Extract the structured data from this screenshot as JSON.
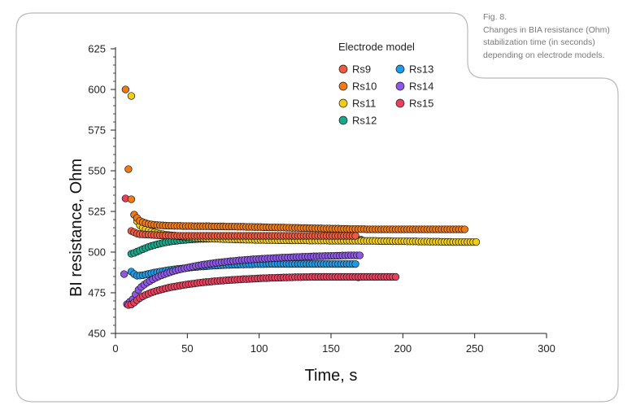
{
  "caption": {
    "label": "Fig. 8.",
    "text_line1": "Changes in BIA resistance (Ohm)",
    "text_line2": "stabilization time (in seconds)",
    "text_line3": "depending on electrode models."
  },
  "chart_data": {
    "type": "scatter",
    "xlabel": "Time, s",
    "ylabel": "BI resistance, Ohm",
    "xlim": [
      0,
      300
    ],
    "ylim": [
      450,
      625
    ],
    "xticks": [
      0,
      50,
      100,
      150,
      200,
      250,
      300
    ],
    "yticks": [
      450,
      475,
      500,
      525,
      550,
      575,
      600,
      625
    ],
    "legend_title": "Electrode model",
    "legend_position": "top-center",
    "colors": {
      "Rs9": "#F05A3E",
      "Rs10": "#F07A14",
      "Rs11": "#F2CD17",
      "Rs12": "#14A98B",
      "Rs13": "#1E9BE8",
      "Rs14": "#8E57E8",
      "Rs15": "#EC3F5E"
    },
    "series": [
      {
        "name": "Rs9",
        "x_start": 11,
        "x_step": 2,
        "values": [
          513.0,
          512.2,
          511.4,
          511.0,
          510.9,
          510.8,
          510.7,
          510.6,
          510.5,
          510.4,
          510.3,
          510.3,
          510.2,
          510.2,
          510.1,
          510.1,
          510.0,
          510.0,
          510.0,
          510.0,
          510.0,
          510.0,
          510.0,
          510.0,
          510.0,
          510.0,
          510.0,
          510.0,
          510.0,
          510.0,
          510.0,
          510.0,
          510.0,
          510.0,
          510.0,
          510.0,
          510.0,
          510.0,
          510.0,
          510.0,
          510.0,
          510.0,
          510.0,
          510.0,
          510.0,
          510.0,
          510.0,
          510.0,
          510.0,
          510.0,
          510.0,
          510.0,
          510.0,
          510.0,
          510.0,
          510.0,
          510.0,
          510.0,
          510.0,
          510.0,
          510.0,
          510.0,
          510.0,
          510.0,
          510.0,
          510.0,
          510.0,
          510.0,
          510.0,
          510.0,
          510.0,
          510.0,
          510.0,
          510.0,
          510.0,
          510.0,
          510.0,
          510.0,
          510.0
        ]
      },
      {
        "name": "Rs10",
        "x_start": 7,
        "x_step": 2,
        "values": [
          600.0,
          551.0,
          532.5,
          523.0,
          521.0,
          519.2,
          518.4,
          517.8,
          517.3,
          517.0,
          516.8,
          516.6,
          516.5,
          516.4,
          516.3,
          516.2,
          516.2,
          516.1,
          516.1,
          516.1,
          516.0,
          516.0,
          516.0,
          516.0,
          515.9,
          515.9,
          515.9,
          515.9,
          515.9,
          515.9,
          515.8,
          515.8,
          515.8,
          515.8,
          515.8,
          515.7,
          515.7,
          515.7,
          515.7,
          515.6,
          515.6,
          515.6,
          515.5,
          515.5,
          515.5,
          515.4,
          515.4,
          515.4,
          515.3,
          515.3,
          515.2,
          515.2,
          515.2,
          515.1,
          515.1,
          515.1,
          515.0,
          515.0,
          514.9,
          514.9,
          514.9,
          514.8,
          514.8,
          514.8,
          514.7,
          514.7,
          514.6,
          514.6,
          514.6,
          514.5,
          514.5,
          514.5,
          514.4,
          514.4,
          514.4,
          514.3,
          514.3,
          514.3,
          514.2,
          514.2,
          514.2,
          514.1,
          514.1,
          514.1,
          514.0,
          514.0,
          514.0,
          514.0,
          514.0,
          514.0,
          514.0,
          514.0,
          514.0,
          514.0,
          514.0,
          514.0,
          514.0,
          514.0,
          514.0,
          514.0,
          514.0,
          514.0,
          514.0,
          514.0,
          514.0,
          514.0,
          514.0,
          514.0,
          514.0,
          514.0,
          514.0,
          514.0,
          514.0,
          514.0,
          514.0,
          514.0,
          514.0,
          514.0,
          514.0
        ]
      },
      {
        "name": "Rs11",
        "x_start": 11,
        "x_step": 2,
        "values": [
          596.0,
          523.0,
          519.0,
          516.5,
          515.0,
          514.0,
          513.2,
          512.6,
          512.1,
          511.7,
          511.3,
          511.0,
          510.7,
          510.5,
          510.3,
          510.1,
          509.9,
          509.7,
          509.5,
          509.4,
          509.2,
          509.1,
          508.9,
          508.8,
          508.7,
          508.6,
          508.5,
          508.4,
          508.3,
          508.2,
          508.2,
          508.1,
          508.0,
          508.0,
          507.9,
          507.9,
          507.8,
          507.8,
          507.7,
          507.7,
          507.6,
          507.6,
          507.6,
          507.5,
          507.5,
          507.5,
          507.5,
          507.4,
          507.4,
          507.4,
          507.4,
          507.3,
          507.3,
          507.3,
          507.3,
          507.3,
          507.2,
          507.2,
          507.2,
          507.2,
          507.2,
          507.2,
          507.1,
          507.1,
          507.1,
          507.1,
          507.1,
          507.1,
          507.1,
          507.0,
          507.0,
          507.0,
          507.0,
          507.0,
          507.0,
          507.0,
          507.0,
          507.0,
          507.0,
          507.0,
          506.9,
          506.9,
          506.9,
          506.9,
          506.9,
          506.9,
          506.8,
          506.8,
          506.8,
          506.8,
          506.8,
          506.7,
          506.7,
          506.7,
          506.7,
          506.7,
          506.6,
          506.6,
          506.6,
          506.6,
          506.5,
          506.5,
          506.5,
          506.5,
          506.4,
          506.4,
          506.4,
          506.4,
          506.3,
          506.3,
          506.3,
          506.3,
          506.2,
          506.2,
          506.2,
          506.2,
          506.2,
          506.2,
          506.2,
          506.2,
          506.2
        ]
      },
      {
        "name": "Rs12",
        "x_start": 11,
        "x_step": 2,
        "values": [
          499.0,
          499.5,
          500.3,
          501.0,
          501.8,
          502.5,
          503.2,
          503.8,
          504.3,
          504.8,
          505.2,
          505.6,
          506.0,
          506.3,
          506.6,
          506.8,
          507.0,
          507.2,
          507.4,
          507.5,
          507.7,
          507.8,
          507.9,
          508.0,
          508.1,
          508.1,
          508.2,
          508.2,
          508.3,
          508.3,
          508.3,
          508.3,
          508.3,
          508.3,
          508.3,
          508.3,
          508.3,
          508.3,
          508.3,
          508.3,
          508.3,
          508.3,
          508.3,
          508.3,
          508.3,
          508.3,
          508.2,
          508.2,
          508.2,
          508.2,
          508.2,
          508.2,
          508.1,
          508.1,
          508.1,
          508.1,
          508.1,
          508.0,
          508.0,
          508.0,
          508.0,
          508.0,
          507.9,
          507.9,
          507.9,
          507.9,
          507.8,
          507.8,
          507.8,
          507.8,
          507.7,
          507.7,
          507.7,
          507.7,
          507.7,
          507.7,
          507.6,
          507.6,
          507.6,
          507.6,
          507.6
        ]
      },
      {
        "name": "Rs13",
        "x_start": 11,
        "x_step": 2,
        "values": [
          488.0,
          486.5,
          485.5,
          485.6,
          485.8,
          486.2,
          486.6,
          487.0,
          487.4,
          487.7,
          488.0,
          488.3,
          488.6,
          488.9,
          489.1,
          489.4,
          489.6,
          489.8,
          490.0,
          490.2,
          490.4,
          490.6,
          490.8,
          490.9,
          491.1,
          491.2,
          491.3,
          491.5,
          491.6,
          491.7,
          491.8,
          491.9,
          492.0,
          492.1,
          492.1,
          492.2,
          492.3,
          492.3,
          492.4,
          492.4,
          492.5,
          492.5,
          492.5,
          492.6,
          492.6,
          492.6,
          492.6,
          492.7,
          492.7,
          492.7,
          492.7,
          492.7,
          492.7,
          492.7,
          492.7,
          492.7,
          492.7,
          492.7,
          492.7,
          492.7,
          492.7,
          492.7,
          492.7,
          492.7,
          492.7,
          492.7,
          492.7,
          492.7,
          492.7,
          492.7,
          492.7,
          492.7,
          492.7,
          492.7,
          492.7,
          492.7,
          492.7,
          492.7,
          492.7,
          484.5
        ]
      },
      {
        "name": "Rs14",
        "x_start": 6,
        "x_step": 2,
        "values": [
          486.5,
          468.0,
          469.5,
          471.0,
          474.0,
          476.8,
          478.6,
          480.0,
          481.2,
          482.3,
          483.3,
          484.2,
          485.0,
          485.7,
          486.4,
          487.0,
          487.6,
          488.2,
          488.7,
          489.2,
          489.6,
          490.0,
          490.4,
          490.8,
          491.1,
          491.5,
          491.8,
          492.1,
          492.4,
          492.6,
          492.9,
          493.1,
          493.4,
          493.6,
          493.8,
          494.0,
          494.2,
          494.4,
          494.5,
          494.7,
          494.9,
          495.0,
          495.2,
          495.3,
          495.4,
          495.6,
          495.7,
          495.8,
          495.9,
          496.0,
          496.1,
          496.2,
          496.3,
          496.4,
          496.5,
          496.6,
          496.7,
          496.7,
          496.8,
          496.9,
          497.0,
          497.0,
          497.1,
          497.2,
          497.2,
          497.3,
          497.4,
          497.4,
          497.5,
          497.5,
          497.6,
          497.6,
          497.7,
          497.7,
          497.8,
          497.8,
          497.9,
          497.9,
          498.0,
          498.0,
          498.0,
          498.0,
          498.0
        ]
      },
      {
        "name": "Rs15",
        "x_start": 7,
        "x_step": 2,
        "values": [
          533.0,
          467.5,
          467.8,
          469.0,
          470.5,
          471.8,
          472.8,
          473.7,
          474.4,
          475.1,
          475.7,
          476.3,
          476.8,
          477.2,
          477.7,
          478.1,
          478.5,
          478.8,
          479.1,
          479.4,
          479.7,
          480.0,
          480.3,
          480.5,
          480.7,
          481.0,
          481.2,
          481.4,
          481.6,
          481.7,
          481.9,
          482.1,
          482.2,
          482.4,
          482.5,
          482.7,
          482.8,
          482.9,
          483.0,
          483.1,
          483.2,
          483.4,
          483.4,
          483.5,
          483.6,
          483.7,
          483.8,
          483.9,
          484.0,
          484.0,
          484.1,
          484.2,
          484.2,
          484.3,
          484.3,
          484.4,
          484.4,
          484.5,
          484.5,
          484.6,
          484.6,
          484.6,
          484.7,
          484.7,
          484.7,
          484.8,
          484.8,
          484.8,
          484.8,
          484.8,
          484.8,
          484.8,
          484.8,
          484.8,
          484.8,
          484.8,
          484.8,
          484.8,
          484.8,
          484.8,
          484.8,
          484.8,
          484.8,
          484.8,
          484.8,
          484.8,
          484.8,
          484.8,
          484.8,
          484.8,
          484.8,
          484.8,
          484.8,
          484.8,
          484.8
        ]
      }
    ]
  }
}
